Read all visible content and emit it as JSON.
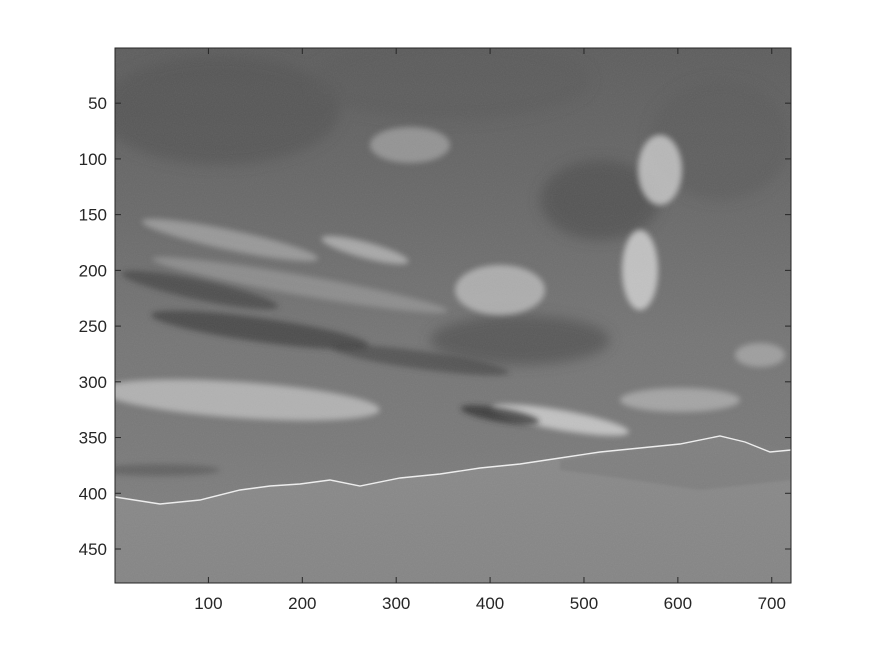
{
  "figure": {
    "type": "grayscale-image-plot",
    "description_visible": "Grayscale sky and cloud image displayed in an axes with pixel-index tick labels",
    "x_axis": {
      "ticks": [
        100,
        200,
        300,
        400,
        500,
        600,
        700
      ],
      "range": [
        1,
        720
      ]
    },
    "y_axis": {
      "ticks": [
        50,
        100,
        150,
        200,
        250,
        300,
        350,
        400,
        450
      ],
      "range": [
        1,
        480
      ],
      "reversed": true
    },
    "colors": {
      "axes_border": "#262626",
      "background": "#ffffff",
      "image_mid_gray": "#808080"
    }
  }
}
